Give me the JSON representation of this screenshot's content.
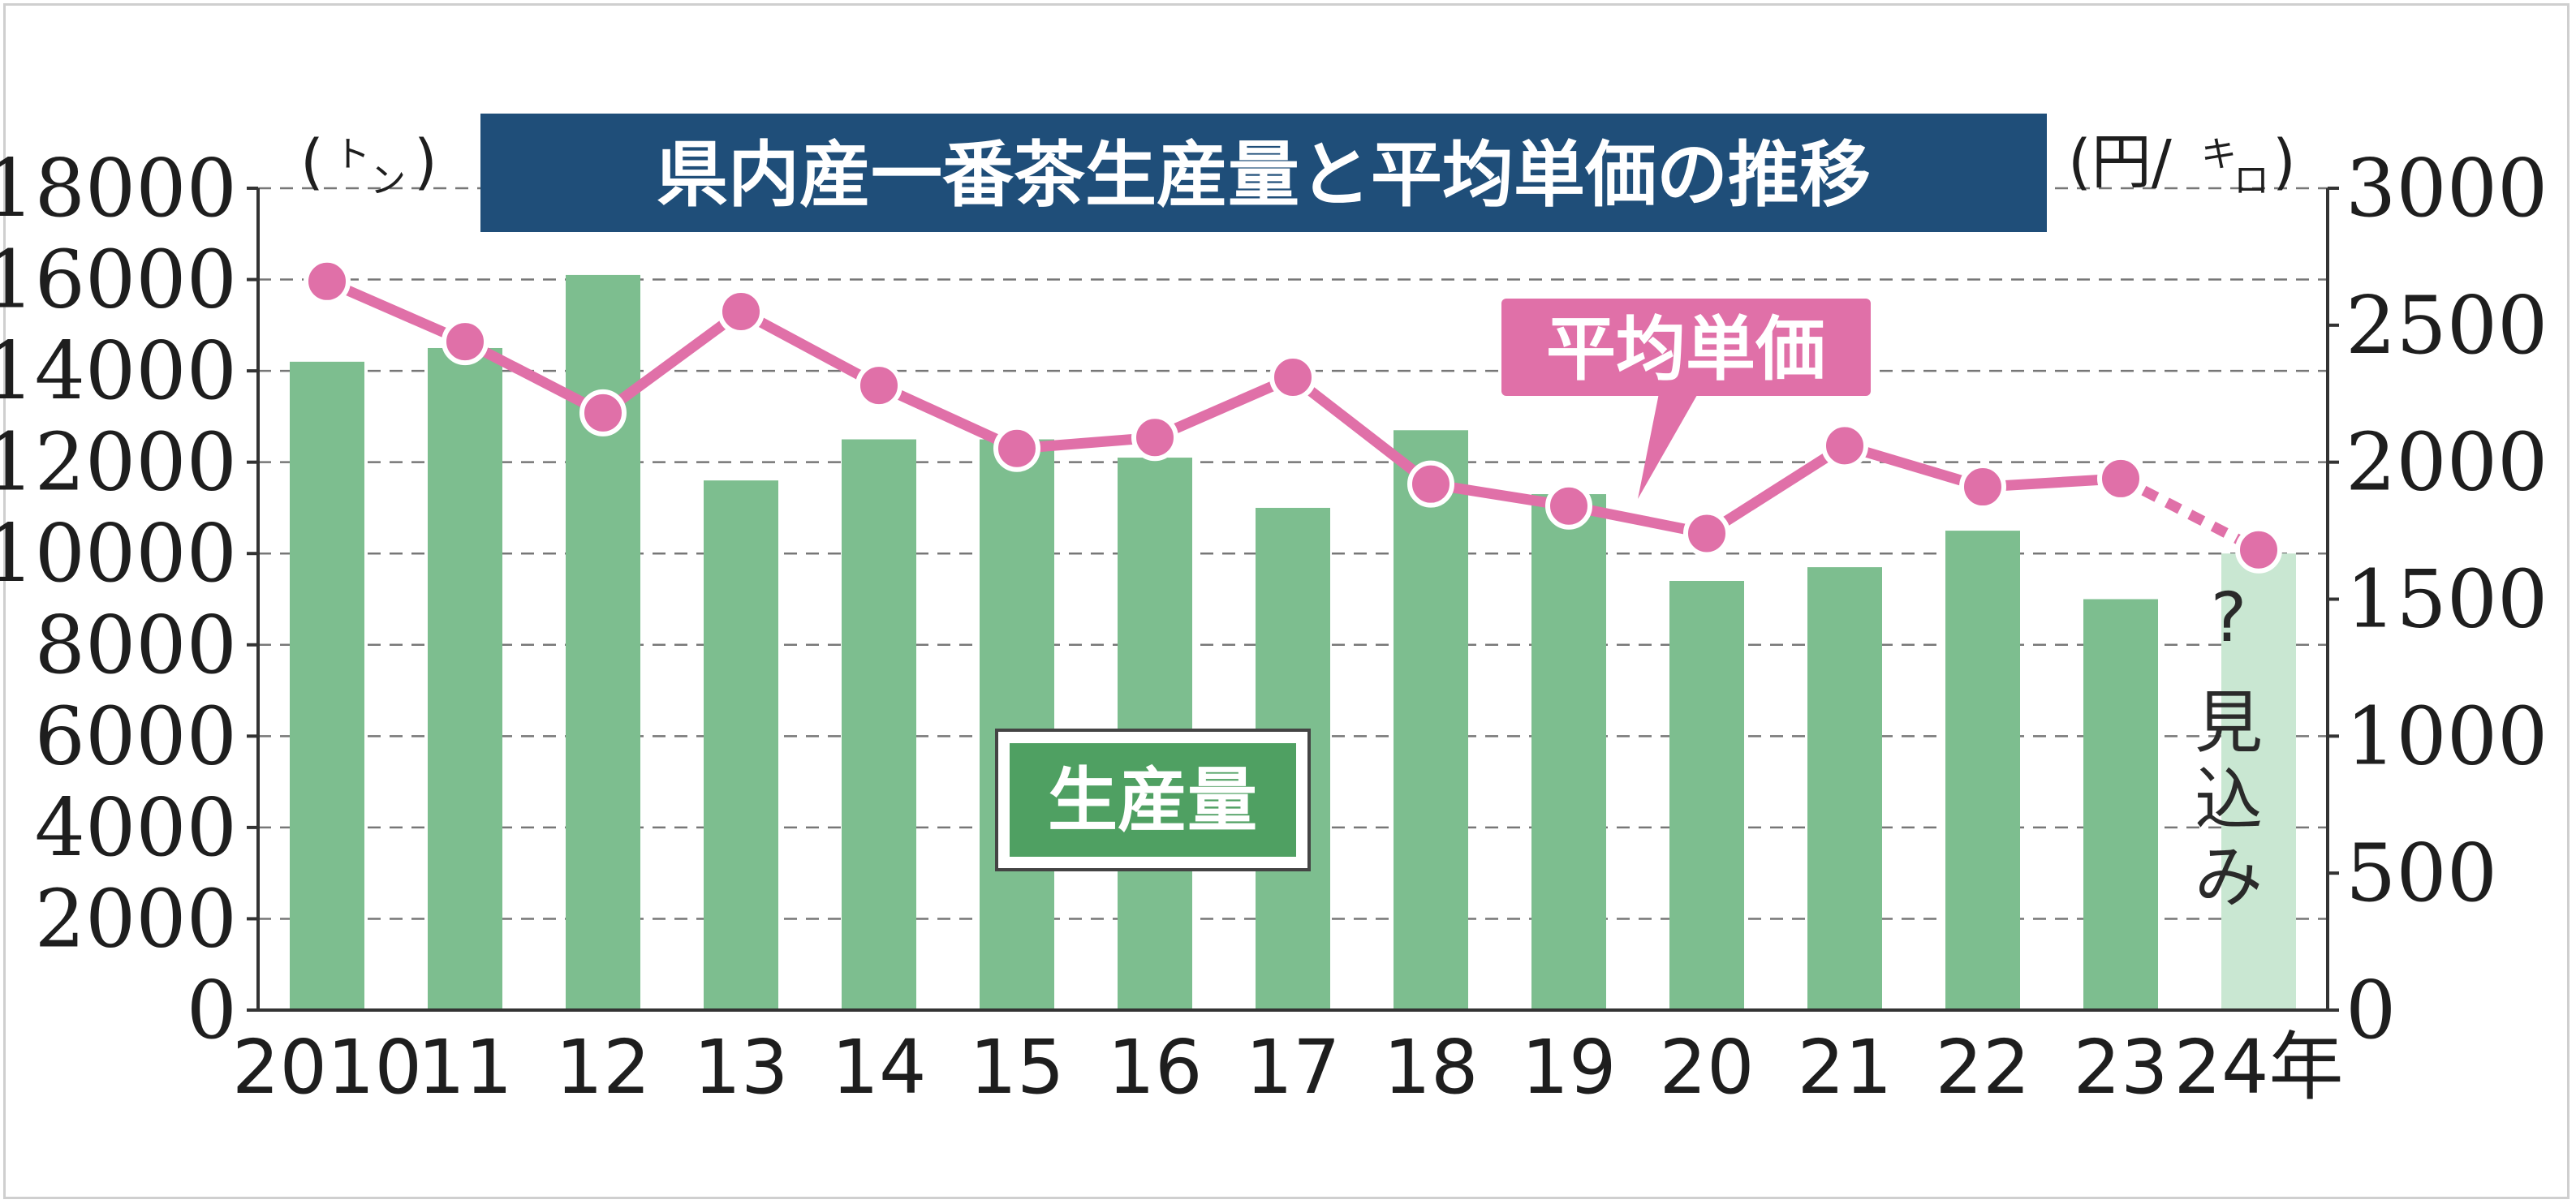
{
  "chart_data": {
    "type": "bar",
    "title": "県内産一番茶生産量と平均単価の推移",
    "categories": [
      "2010",
      "11",
      "12",
      "13",
      "14",
      "15",
      "16",
      "17",
      "18",
      "19",
      "20",
      "21",
      "22",
      "23",
      "24年"
    ],
    "left_axis": {
      "unit_open": "(",
      "unit_main": "ト",
      "unit_small": "ン",
      "unit_close": ")",
      "ylim": [
        0,
        18000
      ],
      "ticks": [
        "0",
        "2000",
        "4000",
        "6000",
        "8000",
        "10000",
        "12000",
        "14000",
        "16000",
        "18000"
      ]
    },
    "right_axis": {
      "unit_open": "(円/",
      "unit_main": "キ",
      "unit_small": "ロ",
      "unit_close": ")",
      "ylim": [
        0,
        3000
      ],
      "ticks": [
        "0",
        "500",
        "1000",
        "1500",
        "2000",
        "2500",
        "3000"
      ]
    },
    "series": [
      {
        "name": "生産量",
        "kind": "bar",
        "axis": "left",
        "values": [
          14200,
          14500,
          16100,
          11600,
          12500,
          12500,
          12100,
          11000,
          12700,
          11300,
          9400,
          9700,
          10500,
          9000,
          10000
        ],
        "color": "#7dbe8f",
        "projected_color": "#c9e7d2"
      },
      {
        "name": "平均単価",
        "kind": "line",
        "axis": "right",
        "values": [
          2660,
          2440,
          2180,
          2550,
          2280,
          2050,
          2090,
          2310,
          1920,
          1840,
          1740,
          2060,
          1910,
          1940,
          1680
        ],
        "color": "#e070a8"
      }
    ],
    "projection": {
      "category": "24年",
      "mark": "?",
      "label": "見込み"
    },
    "grid": "horizontal dashed",
    "colors": {
      "title_bg": "#1f4e79",
      "bar": "#7dbe8f",
      "bar_projected": "#c9e7d2",
      "line": "#e070a8",
      "production_label_bg": "#4fa062",
      "price_label_bg": "#e070a8"
    }
  }
}
